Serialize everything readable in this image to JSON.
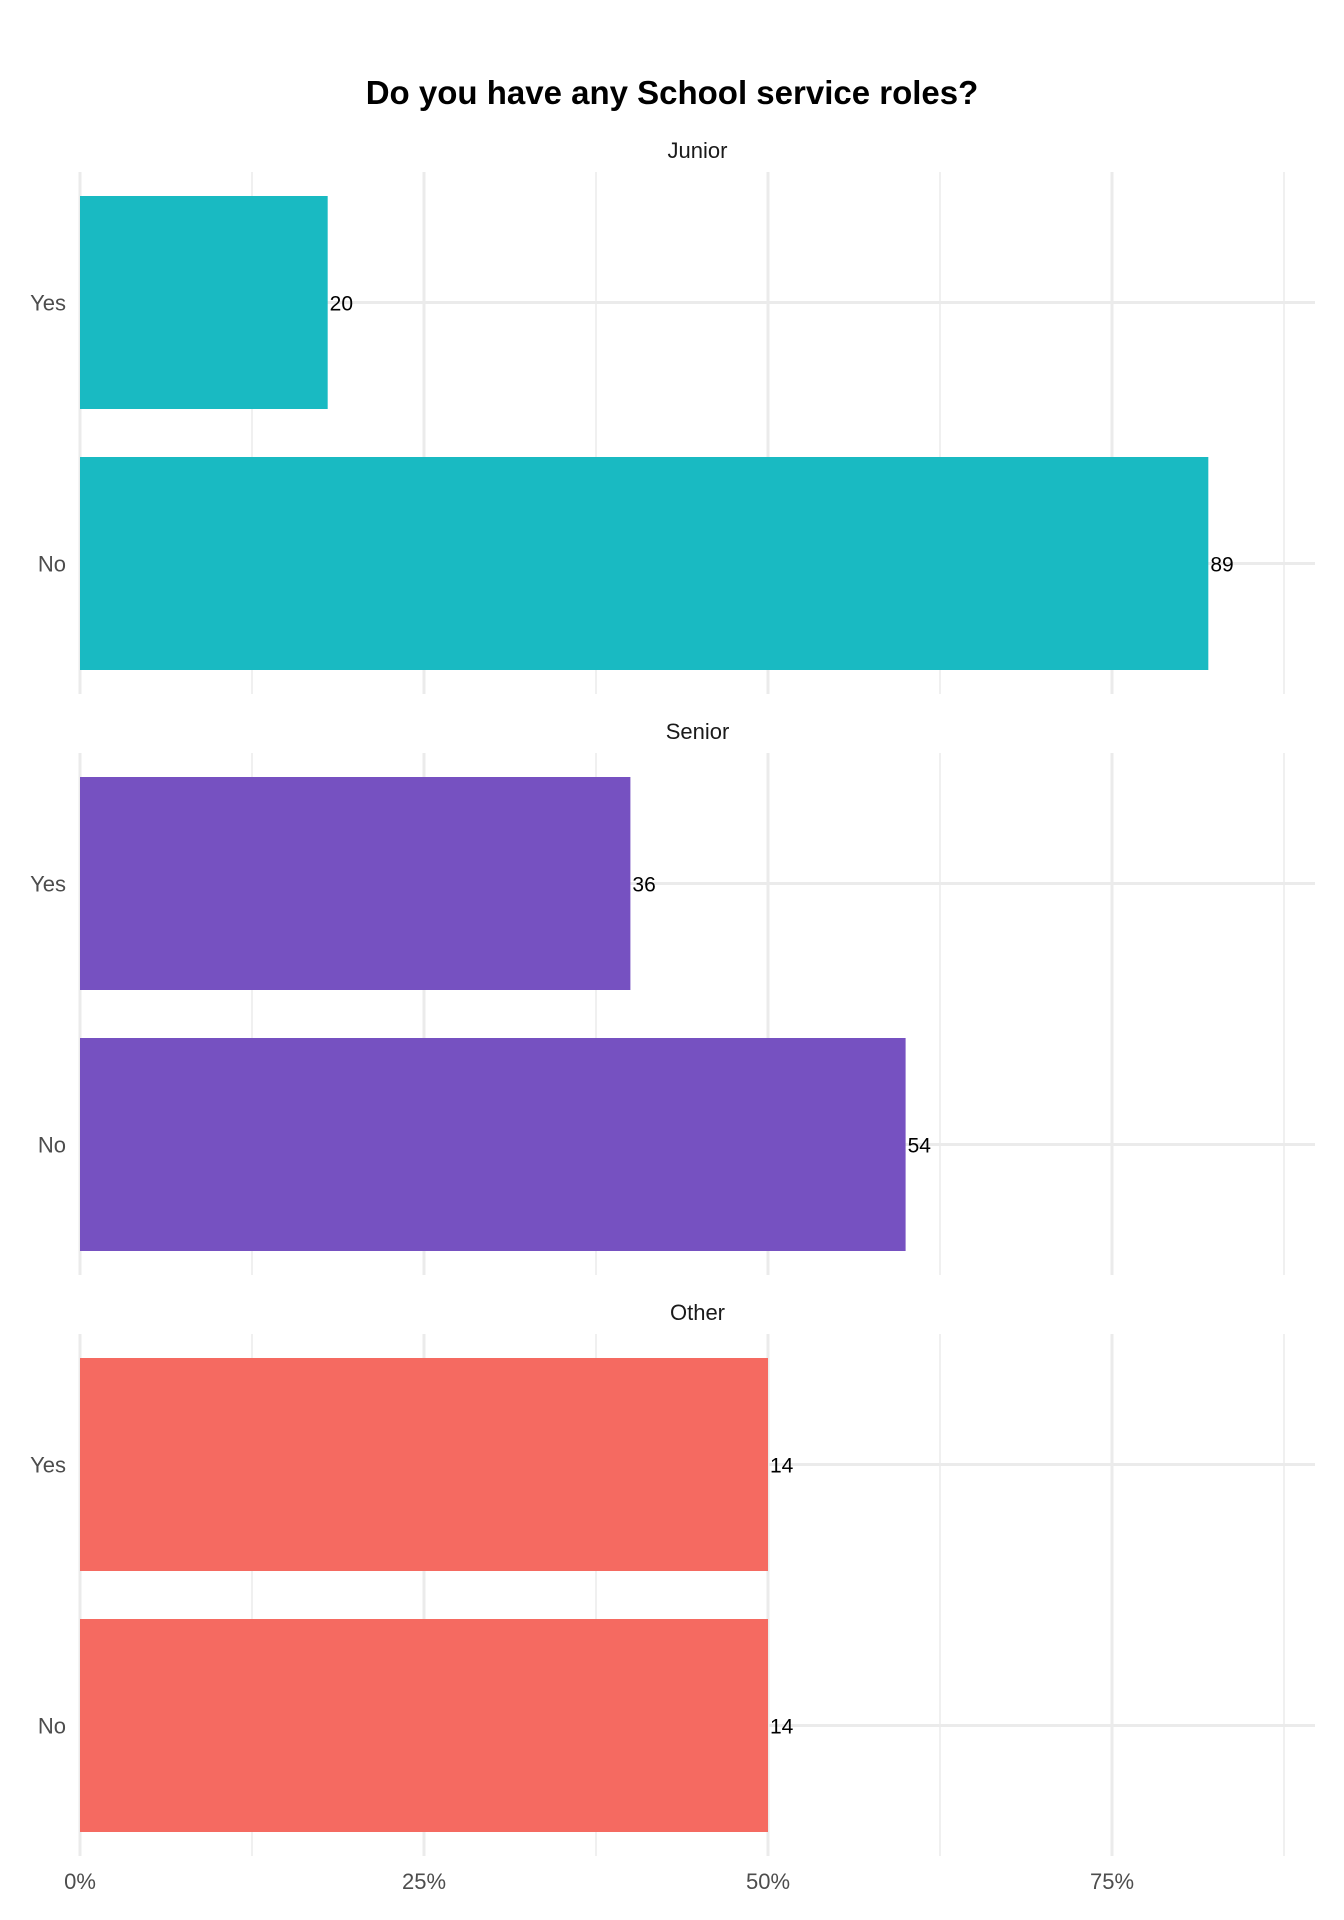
{
  "chart_data": {
    "type": "bar",
    "orientation": "horizontal",
    "title": "Do you have any School service roles?",
    "xlabel": "",
    "ylabel": "",
    "x_unit": "percent",
    "xlim": [
      0,
      90
    ],
    "x_ticks": [
      0,
      25,
      50,
      75
    ],
    "x_tick_labels": [
      "0%",
      "25%",
      "50%",
      "75%"
    ],
    "grid": true,
    "legend": "none",
    "categories": [
      "Yes",
      "No"
    ],
    "facets": [
      {
        "name": "Junior",
        "color": "#19BAC2",
        "values": [
          18,
          82
        ],
        "labels": [
          "20",
          "89"
        ]
      },
      {
        "name": "Senior",
        "color": "#7651C1",
        "values": [
          40,
          60
        ],
        "labels": [
          "36",
          "54"
        ]
      },
      {
        "name": "Other",
        "color": "#F56A61",
        "values": [
          50,
          50
        ],
        "labels": [
          "14",
          "14"
        ]
      }
    ]
  }
}
